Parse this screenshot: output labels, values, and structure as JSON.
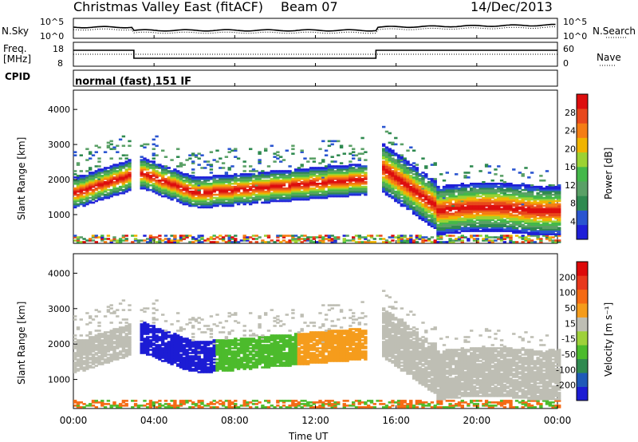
{
  "header": {
    "title": "Christmas Valley East (fitACF)",
    "beam": "Beam 07",
    "date": "14/Dec/2013"
  },
  "params_panels": {
    "nsky_label": "N.Sky",
    "nsearch_label": "N.Search",
    "freq_label_line1": "Freq.",
    "freq_label_line2": "[MHz]",
    "nave_label": "Nave",
    "cpid_label": "CPID",
    "cpid_value": "normal (fast) 151 IF",
    "noise_left_ticks": [
      "10^5",
      "10^0"
    ],
    "noise_right_ticks": [
      "10^5",
      "10^0"
    ],
    "freq_left_ticks": [
      "18",
      "8"
    ],
    "freq_right_ticks": [
      "60",
      "0"
    ]
  },
  "colors": {
    "power_scale": [
      "#1f1fd8",
      "#2a55d0",
      "#2f8a50",
      "#5aa066",
      "#44b84a",
      "#9cd233",
      "#f0b400",
      "#f57d14",
      "#e8481c",
      "#dd0e0e"
    ],
    "velocity_scale": [
      "#1c1cd4",
      "#1f5ab8",
      "#2f8a50",
      "#4cbb2c",
      "#9ed13a",
      "#bebeb4",
      "#f59c1c",
      "#f56a14",
      "#e8381c",
      "#dd0a0a"
    ]
  },
  "chart_data": [
    {
      "type": "heatmap",
      "name": "Power",
      "ylabel": "Slant Range [km]",
      "y_ticks": [
        "4000",
        "3000",
        "2000",
        "1000"
      ],
      "ylim": [
        180,
        4550
      ],
      "colorbar": {
        "label": "Power [dB]",
        "ticks": [
          "28",
          "24",
          "20",
          "16",
          "12",
          "8",
          "4"
        ],
        "range": [
          0,
          32
        ]
      }
    },
    {
      "type": "heatmap",
      "name": "Velocity",
      "ylabel": "Slant Range [km]",
      "y_ticks": [
        "4000",
        "3000",
        "2000",
        "1000"
      ],
      "ylim": [
        180,
        4550
      ],
      "colorbar": {
        "label": "Velocity [m s⁻¹]",
        "ticks": [
          "200",
          "100",
          "50",
          "15",
          "-15",
          "-50",
          "-100",
          "-200"
        ]
      }
    }
  ],
  "x_axis": {
    "label": "Time UT",
    "ticks": [
      "00:00",
      "04:00",
      "08:00",
      "12:00",
      "16:00",
      "20:00",
      "00:00"
    ],
    "range_hours": [
      0,
      24
    ]
  }
}
